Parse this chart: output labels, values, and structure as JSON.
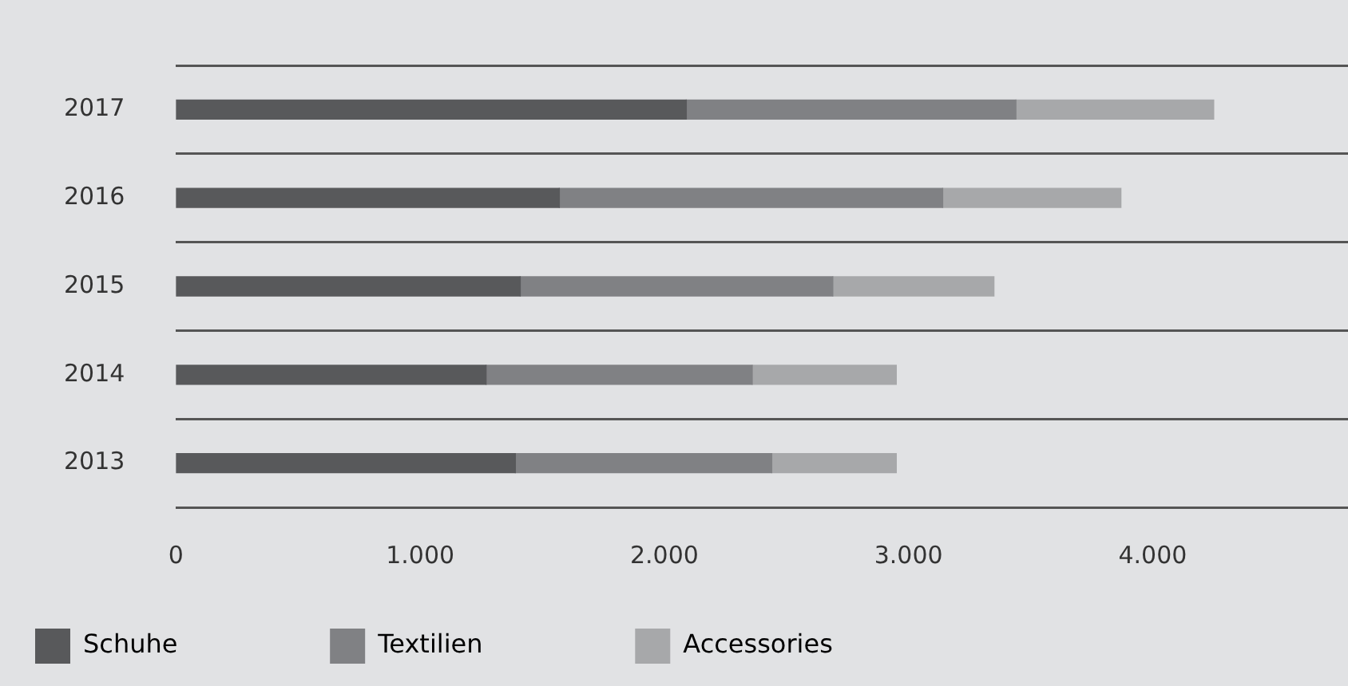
{
  "chart_data": {
    "type": "bar",
    "orientation": "horizontal",
    "stacked": true,
    "categories": [
      "2017",
      "2016",
      "2015",
      "2014",
      "2013"
    ],
    "series": [
      {
        "name": "Schuhe",
        "color": "#58595b",
        "values": [
          2090,
          1570,
          1410,
          1270,
          1390
        ]
      },
      {
        "name": "Textilien",
        "color": "#808184",
        "values": [
          1350,
          1570,
          1280,
          1090,
          1050
        ]
      },
      {
        "name": "Accessories",
        "color": "#a7a8aa",
        "values": [
          810,
          730,
          660,
          590,
          510
        ]
      }
    ],
    "xlim": [
      0,
      4800
    ],
    "xticks": [
      {
        "value": 0,
        "label": "0"
      },
      {
        "value": 1000,
        "label": "1.000"
      },
      {
        "value": 2000,
        "label": "2.000"
      },
      {
        "value": 3000,
        "label": "3.000"
      },
      {
        "value": 4000,
        "label": "4.000"
      }
    ],
    "grid": "y",
    "legend": "bottom"
  }
}
